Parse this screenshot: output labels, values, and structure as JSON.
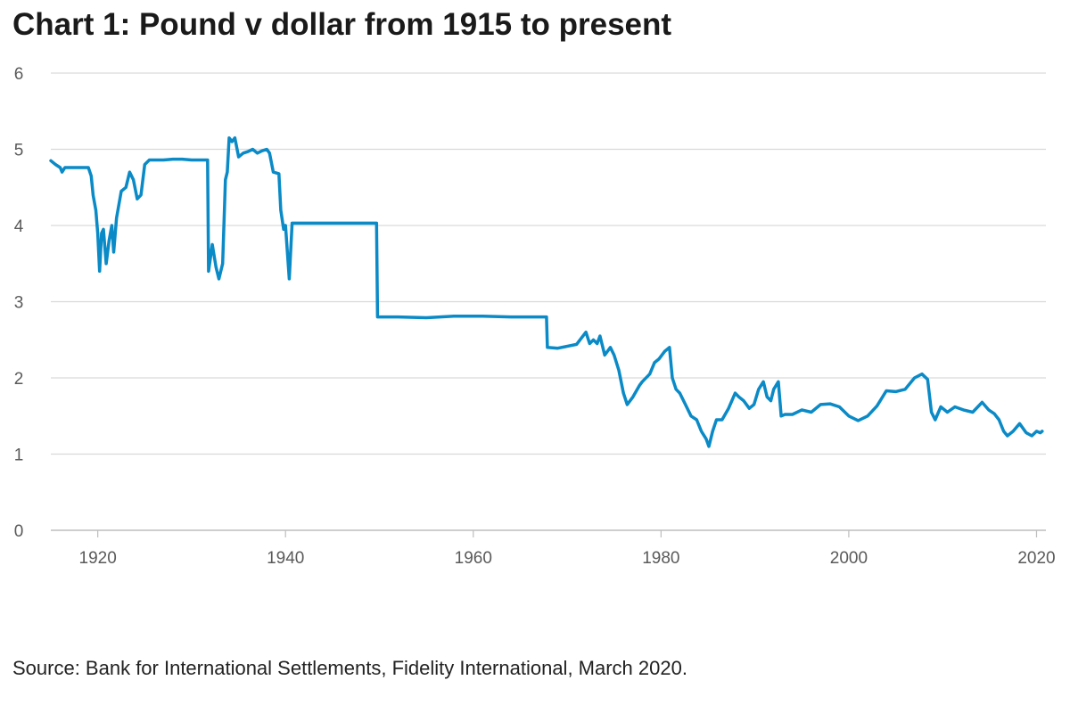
{
  "chart_data": {
    "type": "line",
    "title": "Chart 1: Pound v dollar from 1915 to present",
    "xlabel": "",
    "ylabel": "",
    "xlim": [
      1915,
      2021
    ],
    "ylim": [
      0,
      6
    ],
    "yticks": [
      "0",
      "1",
      "2",
      "3",
      "4",
      "5",
      "6"
    ],
    "xticks": [
      "1920",
      "1940",
      "1960",
      "1980",
      "2000",
      "2020"
    ],
    "grid": "horizontal",
    "line_color": "#0a8ac6",
    "series": [
      {
        "points": [
          [
            1915.0,
            4.85
          ],
          [
            1915.5,
            4.8
          ],
          [
            1916.0,
            4.76
          ],
          [
            1916.2,
            4.7
          ],
          [
            1916.5,
            4.76
          ],
          [
            1917.0,
            4.76
          ],
          [
            1918.0,
            4.76
          ],
          [
            1919.0,
            4.76
          ],
          [
            1919.3,
            4.65
          ],
          [
            1919.5,
            4.4
          ],
          [
            1919.8,
            4.2
          ],
          [
            1920.0,
            3.9
          ],
          [
            1920.2,
            3.4
          ],
          [
            1920.4,
            3.9
          ],
          [
            1920.6,
            3.95
          ],
          [
            1920.9,
            3.5
          ],
          [
            1921.2,
            3.8
          ],
          [
            1921.5,
            4.0
          ],
          [
            1921.7,
            3.65
          ],
          [
            1922.0,
            4.1
          ],
          [
            1922.5,
            4.45
          ],
          [
            1923.0,
            4.5
          ],
          [
            1923.4,
            4.7
          ],
          [
            1923.8,
            4.6
          ],
          [
            1924.2,
            4.35
          ],
          [
            1924.6,
            4.4
          ],
          [
            1925.0,
            4.8
          ],
          [
            1925.5,
            4.86
          ],
          [
            1926.0,
            4.86
          ],
          [
            1927.0,
            4.86
          ],
          [
            1928.0,
            4.87
          ],
          [
            1929.0,
            4.87
          ],
          [
            1930.0,
            4.86
          ],
          [
            1931.0,
            4.86
          ],
          [
            1931.7,
            4.86
          ],
          [
            1931.8,
            3.4
          ],
          [
            1932.2,
            3.75
          ],
          [
            1932.6,
            3.45
          ],
          [
            1932.9,
            3.3
          ],
          [
            1933.3,
            3.5
          ],
          [
            1933.6,
            4.6
          ],
          [
            1933.8,
            4.7
          ],
          [
            1934.0,
            5.15
          ],
          [
            1934.3,
            5.1
          ],
          [
            1934.6,
            5.15
          ],
          [
            1935.0,
            4.9
          ],
          [
            1935.5,
            4.95
          ],
          [
            1936.0,
            4.97
          ],
          [
            1936.5,
            5.0
          ],
          [
            1937.0,
            4.95
          ],
          [
            1937.5,
            4.98
          ],
          [
            1938.0,
            5.0
          ],
          [
            1938.3,
            4.95
          ],
          [
            1938.7,
            4.7
          ],
          [
            1939.3,
            4.68
          ],
          [
            1939.5,
            4.2
          ],
          [
            1939.8,
            3.95
          ],
          [
            1940.0,
            4.0
          ],
          [
            1940.4,
            3.3
          ],
          [
            1940.7,
            4.03
          ],
          [
            1941.0,
            4.03
          ],
          [
            1945.0,
            4.03
          ],
          [
            1949.7,
            4.03
          ],
          [
            1949.8,
            2.8
          ],
          [
            1952.0,
            2.8
          ],
          [
            1955.0,
            2.79
          ],
          [
            1958.0,
            2.81
          ],
          [
            1961.0,
            2.81
          ],
          [
            1964.0,
            2.8
          ],
          [
            1967.8,
            2.8
          ],
          [
            1967.9,
            2.4
          ],
          [
            1969.0,
            2.39
          ],
          [
            1971.0,
            2.44
          ],
          [
            1972.0,
            2.6
          ],
          [
            1972.4,
            2.45
          ],
          [
            1972.8,
            2.5
          ],
          [
            1973.2,
            2.45
          ],
          [
            1973.5,
            2.55
          ],
          [
            1974.0,
            2.3
          ],
          [
            1974.6,
            2.4
          ],
          [
            1975.0,
            2.3
          ],
          [
            1975.5,
            2.1
          ],
          [
            1976.0,
            1.8
          ],
          [
            1976.4,
            1.65
          ],
          [
            1977.0,
            1.75
          ],
          [
            1977.7,
            1.9
          ],
          [
            1978.0,
            1.95
          ],
          [
            1978.8,
            2.05
          ],
          [
            1979.3,
            2.2
          ],
          [
            1979.8,
            2.25
          ],
          [
            1980.4,
            2.35
          ],
          [
            1980.9,
            2.4
          ],
          [
            1981.2,
            2.0
          ],
          [
            1981.6,
            1.85
          ],
          [
            1982.0,
            1.8
          ],
          [
            1982.6,
            1.65
          ],
          [
            1983.2,
            1.5
          ],
          [
            1983.8,
            1.45
          ],
          [
            1984.3,
            1.3
          ],
          [
            1984.8,
            1.2
          ],
          [
            1985.1,
            1.1
          ],
          [
            1985.5,
            1.3
          ],
          [
            1985.9,
            1.45
          ],
          [
            1986.5,
            1.45
          ],
          [
            1987.2,
            1.6
          ],
          [
            1987.9,
            1.8
          ],
          [
            1988.3,
            1.75
          ],
          [
            1988.8,
            1.7
          ],
          [
            1989.4,
            1.6
          ],
          [
            1989.9,
            1.65
          ],
          [
            1990.4,
            1.85
          ],
          [
            1990.9,
            1.95
          ],
          [
            1991.3,
            1.75
          ],
          [
            1991.7,
            1.7
          ],
          [
            1992.0,
            1.85
          ],
          [
            1992.5,
            1.95
          ],
          [
            1992.8,
            1.5
          ],
          [
            1993.2,
            1.52
          ],
          [
            1994.0,
            1.52
          ],
          [
            1995.0,
            1.58
          ],
          [
            1996.0,
            1.55
          ],
          [
            1997.0,
            1.65
          ],
          [
            1998.0,
            1.66
          ],
          [
            1999.0,
            1.62
          ],
          [
            2000.0,
            1.5
          ],
          [
            2001.0,
            1.44
          ],
          [
            2002.0,
            1.5
          ],
          [
            2003.0,
            1.63
          ],
          [
            2004.0,
            1.83
          ],
          [
            2005.0,
            1.82
          ],
          [
            2006.0,
            1.85
          ],
          [
            2007.0,
            2.0
          ],
          [
            2007.8,
            2.05
          ],
          [
            2008.4,
            1.98
          ],
          [
            2008.8,
            1.55
          ],
          [
            2009.2,
            1.45
          ],
          [
            2009.8,
            1.62
          ],
          [
            2010.5,
            1.55
          ],
          [
            2011.3,
            1.62
          ],
          [
            2012.2,
            1.58
          ],
          [
            2013.2,
            1.55
          ],
          [
            2014.2,
            1.68
          ],
          [
            2014.9,
            1.58
          ],
          [
            2015.5,
            1.53
          ],
          [
            2016.0,
            1.45
          ],
          [
            2016.5,
            1.3
          ],
          [
            2016.9,
            1.24
          ],
          [
            2017.5,
            1.3
          ],
          [
            2018.2,
            1.4
          ],
          [
            2018.9,
            1.28
          ],
          [
            2019.5,
            1.24
          ],
          [
            2020.0,
            1.3
          ],
          [
            2020.4,
            1.28
          ],
          [
            2020.6,
            1.3
          ]
        ]
      }
    ]
  },
  "footer": {
    "source": "Source: Bank for International Settlements, Fidelity International, March 2020."
  }
}
